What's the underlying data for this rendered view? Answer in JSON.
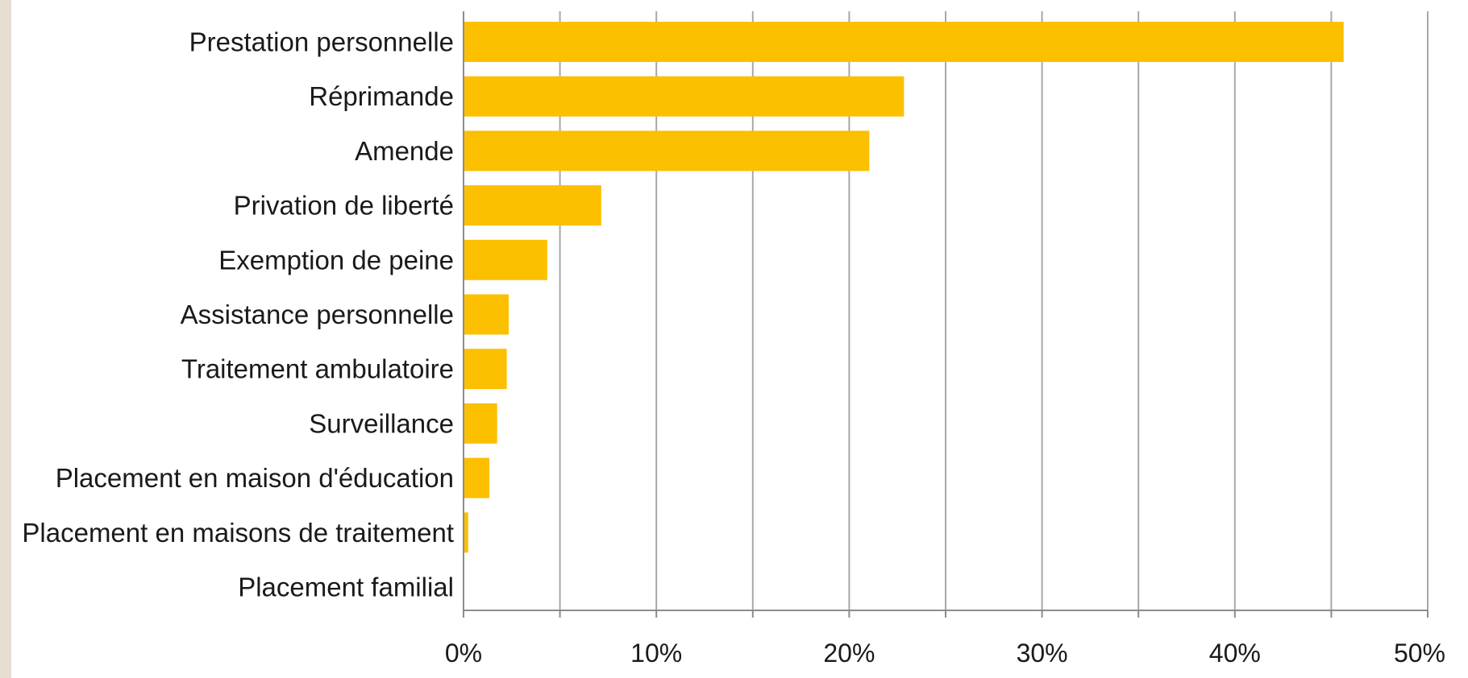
{
  "colors": {
    "bar": "#fcc000",
    "grid": "#a8a8a8",
    "axis": "#8c8c8c",
    "side_strip": "#e6ded3"
  },
  "chart_data": {
    "type": "bar",
    "orientation": "horizontal",
    "title": "",
    "xlabel": "",
    "ylabel": "",
    "categories": [
      "Prestation personnelle",
      "Réprimande",
      "Amende",
      "Privation de liberté",
      "Exemption de peine",
      "Assistance personnelle",
      "Traitement ambulatoire",
      "Surveillance",
      "Placement en maison d'éducation",
      "Placement en maisons de traitement",
      "Placement familial"
    ],
    "values": [
      45.6,
      22.8,
      21.0,
      7.1,
      4.3,
      2.3,
      2.2,
      1.7,
      1.3,
      0.2,
      0.0
    ],
    "xlim": [
      0,
      50
    ],
    "x_ticks": [
      0,
      5,
      10,
      15,
      20,
      25,
      30,
      35,
      40,
      45,
      50
    ],
    "x_tick_labels": [
      "0%",
      "",
      "10%",
      "",
      "20%",
      "",
      "30%",
      "",
      "40%",
      "",
      "50%"
    ],
    "grid": true,
    "legend": "none"
  }
}
